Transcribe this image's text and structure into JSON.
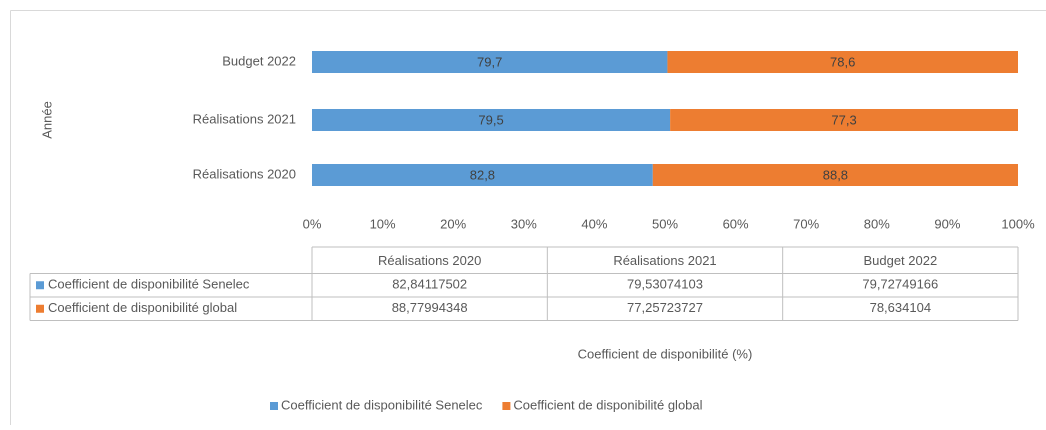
{
  "chart_data": {
    "type": "stacked_bar_100",
    "orientation": "horizontal",
    "y_label": "Année",
    "x_label": "Coefficient de disponibilité (%)",
    "categories": [
      "Réalisations 2020",
      "Réalisations 2021",
      "Budget 2022"
    ],
    "series": [
      {
        "name": "Coefficient de disponibilité Senelec",
        "color": "#5b9bd5",
        "values": [
          82.84117502,
          79.53074103,
          79.72749166
        ],
        "value_labels": [
          "82,8",
          "79,5",
          "79,7"
        ],
        "table_labels": [
          "82,84117502",
          "79,53074103",
          "79,72749166"
        ]
      },
      {
        "name": "Coefficient de disponibilité global",
        "color": "#ed7d31",
        "values": [
          88.77994348,
          77.25723727,
          78.634104
        ],
        "value_labels": [
          "88,8",
          "77,3",
          "78,6"
        ],
        "table_labels": [
          "88,77994348",
          "77,25723727",
          "78,634104"
        ]
      }
    ],
    "xlim": [
      0,
      100
    ],
    "xticks": [
      {
        "value": 0,
        "label": "0%"
      },
      {
        "value": 10,
        "label": "10%"
      },
      {
        "value": 20,
        "label": "20%"
      },
      {
        "value": 30,
        "label": "30%"
      },
      {
        "value": 40,
        "label": "40%"
      },
      {
        "value": 50,
        "label": "50%"
      },
      {
        "value": 60,
        "label": "60%"
      },
      {
        "value": 70,
        "label": "70%"
      },
      {
        "value": 80,
        "label": "80%"
      },
      {
        "value": 90,
        "label": "90%"
      },
      {
        "value": 100,
        "label": "100%"
      }
    ],
    "grid": false,
    "legend": "bottom"
  }
}
